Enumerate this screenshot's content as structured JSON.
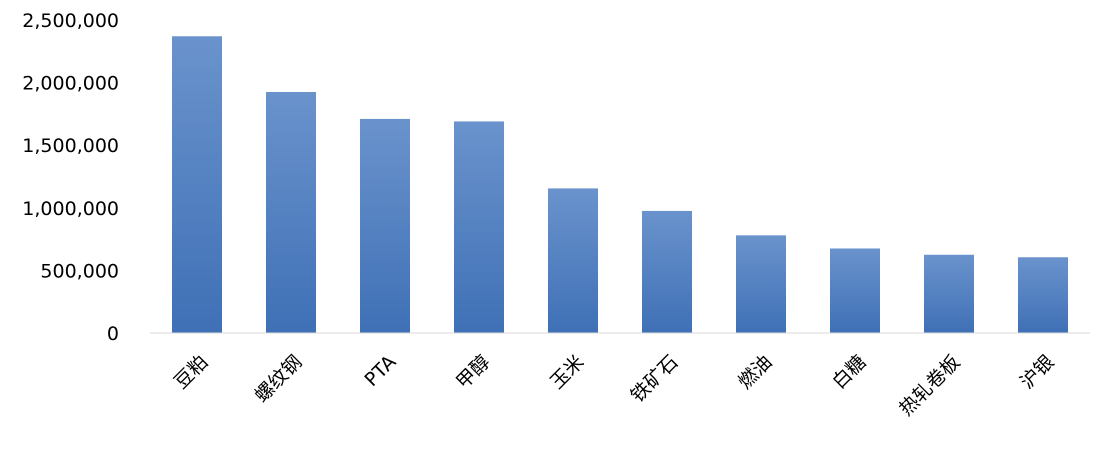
{
  "chart_data": {
    "type": "bar",
    "title": "",
    "xlabel": "",
    "ylabel": "",
    "categories": [
      "豆粕",
      "螺纹钢",
      "PTA",
      "甲醇",
      "玉米",
      "铁矿石",
      "燃油",
      "白糖",
      "热轧卷板",
      "沪银"
    ],
    "values": [
      2370000,
      1925000,
      1710000,
      1690000,
      1155000,
      975000,
      780000,
      675000,
      625000,
      605000
    ],
    "ylim": [
      0,
      2500000
    ],
    "yticks": [
      0,
      500000,
      1000000,
      1500000,
      2000000,
      2500000
    ],
    "ytick_labels": [
      "0",
      "500,000",
      "1,000,000",
      "1,500,000",
      "2,000,000",
      "2,500,000"
    ],
    "grid": false,
    "legend": "none",
    "colors": {
      "bar_top": "#6a93cc",
      "bar_bottom": "#3f70b6",
      "axis": "#d9d9d9"
    }
  }
}
